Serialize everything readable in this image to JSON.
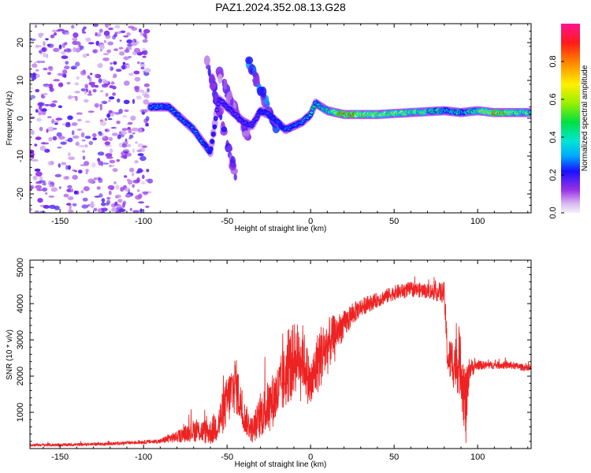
{
  "title": "PAZ1.2024.352.08.13.G28",
  "chart_data": [
    {
      "type": "heatmap",
      "xlabel": "Height of straight line (km)",
      "ylabel": "Frequency (Hz)",
      "xlim": [
        -168,
        132
      ],
      "ylim": [
        -25,
        25
      ],
      "xticks": [
        -150,
        -100,
        -50,
        0,
        50,
        100
      ],
      "xtick_labels": [
        "-150",
        "-100",
        "-50",
        "0",
        "50",
        "100"
      ],
      "yticks": [
        -20,
        -10,
        0,
        10,
        20
      ],
      "ytick_labels": [
        "-20",
        "-10",
        "0",
        "10",
        "20"
      ],
      "colorbar": {
        "label": "Normalized spectral amplitude",
        "range": [
          0,
          1
        ],
        "ticks": [
          0.0,
          0.2,
          0.4,
          0.6,
          0.8
        ],
        "tick_labels": [
          "0.0",
          "0.2",
          "0.4",
          "0.6",
          "0.8"
        ]
      },
      "features": {
        "noise_region_x": [
          -168,
          -96
        ],
        "noise_amplitude": 0.12,
        "tone_track": {
          "x": [
            -96,
            -90,
            -85,
            -80,
            -75,
            -70,
            -65,
            -60,
            -55,
            -50,
            -45,
            -40,
            -35,
            -30,
            -25,
            -20,
            -15,
            -10,
            -5,
            0,
            3,
            10,
            20,
            40,
            60,
            80,
            90,
            100,
            110,
            120,
            132
          ],
          "y": [
            3,
            3,
            3,
            1,
            -1,
            -3,
            -6,
            -9,
            5,
            3,
            1,
            -1,
            -2,
            2,
            1,
            -1,
            -3,
            -2,
            -1,
            1,
            4,
            2,
            1,
            1,
            1.5,
            2,
            1.5,
            2,
            1.5,
            1.5,
            1.5
          ],
          "amplitude": [
            0.35,
            0.35,
            0.3,
            0.3,
            0.3,
            0.3,
            0.3,
            0.25,
            0.15,
            0.15,
            0.15,
            0.15,
            0.15,
            0.2,
            0.25,
            0.25,
            0.3,
            0.3,
            0.35,
            0.4,
            0.45,
            0.55,
            0.9,
            0.7,
            0.65,
            0.5,
            0.45,
            0.6,
            0.95,
            0.7,
            0.6
          ]
        },
        "diagonal_streaks": [
          {
            "x": [
              -62,
              -45
            ],
            "y": [
              15,
              -15
            ],
            "amplitude": 0.15
          },
          {
            "x": [
              -38,
              -20
            ],
            "y": [
              16,
              -3
            ],
            "amplitude": 0.2
          },
          {
            "x": [
              -55,
              -37
            ],
            "y": [
              12,
              -5
            ],
            "amplitude": 0.12
          }
        ]
      }
    },
    {
      "type": "line",
      "xlabel": "Height of straight line (km)",
      "ylabel": "SNR (10 * v/v)",
      "xlim": [
        -168,
        132
      ],
      "ylim": [
        0,
        5200
      ],
      "xticks": [
        -150,
        -100,
        -50,
        0,
        50,
        100
      ],
      "xtick_labels": [
        "-150",
        "-100",
        "-50",
        "0",
        "50",
        "100"
      ],
      "yticks": [
        1000,
        2000,
        3000,
        4000,
        5000
      ],
      "ytick_labels": [
        "1000",
        "2000",
        "3000",
        "4000",
        "5000"
      ],
      "color": "#ee2222",
      "series": [
        {
          "x": [
            -168,
            -150,
            -120,
            -100,
            -90,
            -85,
            -80,
            -70,
            -60,
            -55,
            -50,
            -45,
            -40,
            -35,
            -30,
            -25,
            -20,
            -15,
            -10,
            -5,
            0,
            5,
            10,
            15,
            20,
            25,
            30,
            40,
            50,
            60,
            70,
            80,
            82,
            85,
            90,
            93,
            95,
            100,
            110,
            120,
            132
          ],
          "y": [
            100,
            100,
            130,
            180,
            200,
            280,
            320,
            500,
            450,
            700,
            1300,
            1800,
            900,
            500,
            900,
            1200,
            1500,
            2000,
            2500,
            2600,
            1700,
            2500,
            2800,
            3200,
            3400,
            3700,
            3900,
            4100,
            4300,
            4400,
            4350,
            4300,
            2500,
            2400,
            2300,
            1100,
            2200,
            2300,
            2300,
            2300,
            2200
          ],
          "noise": [
            40,
            40,
            40,
            50,
            60,
            120,
            150,
            300,
            350,
            500,
            700,
            800,
            450,
            350,
            600,
            700,
            800,
            900,
            1000,
            900,
            700,
            900,
            800,
            500,
            400,
            300,
            250,
            200,
            200,
            200,
            200,
            300,
            500,
            700,
            900,
            1100,
            300,
            120,
            100,
            100,
            80
          ]
        }
      ]
    }
  ]
}
